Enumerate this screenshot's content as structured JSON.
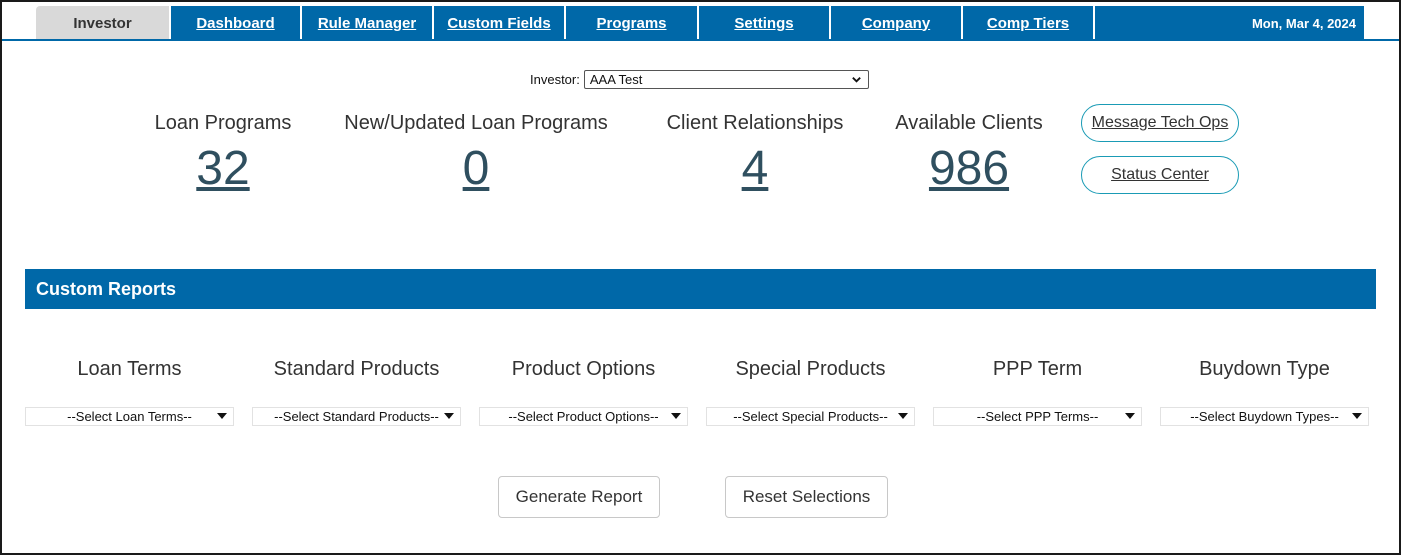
{
  "tabs": [
    {
      "label": "Investor",
      "active": true
    },
    {
      "label": "Dashboard",
      "active": false
    },
    {
      "label": "Rule Manager",
      "active": false
    },
    {
      "label": "Custom Fields",
      "active": false
    },
    {
      "label": "Programs",
      "active": false
    },
    {
      "label": "Settings",
      "active": false
    },
    {
      "label": "Company",
      "active": false
    },
    {
      "label": "Comp Tiers",
      "active": false
    }
  ],
  "date": "Mon, Mar 4, 2024",
  "investor": {
    "label": "Investor:",
    "selected": "AAA Test"
  },
  "stats": [
    {
      "label": "Loan Programs",
      "value": "32"
    },
    {
      "label": "New/Updated Loan Programs",
      "value": "0"
    },
    {
      "label": "Client Relationships",
      "value": "4"
    },
    {
      "label": "Available Clients",
      "value": "986"
    }
  ],
  "actions": {
    "message": "Message Tech Ops",
    "status": "Status Center"
  },
  "reports": {
    "title": "Custom Reports",
    "filters": [
      {
        "label": "Loan Terms",
        "placeholder": "--Select Loan Terms--"
      },
      {
        "label": "Standard Products",
        "placeholder": "--Select Standard Products--"
      },
      {
        "label": "Product Options",
        "placeholder": "--Select Product Options--"
      },
      {
        "label": "Special Products",
        "placeholder": "--Select Special Products--"
      },
      {
        "label": "PPP Term",
        "placeholder": "--Select PPP Terms--"
      },
      {
        "label": "Buydown Type",
        "placeholder": "--Select Buydown Types--"
      }
    ],
    "generate": "Generate Report",
    "reset": "Reset Selections"
  },
  "colors": {
    "primary": "#0068a8",
    "pill_border": "#1a9bb5",
    "stat_value": "#2f4f5f"
  }
}
